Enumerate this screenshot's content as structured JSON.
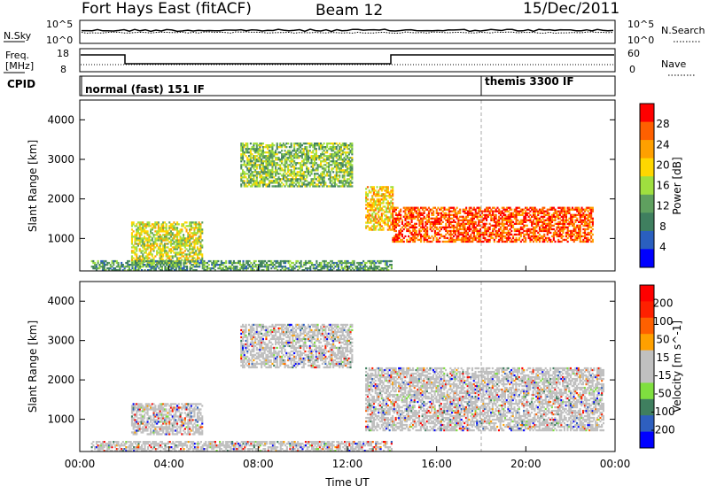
{
  "header": {
    "radar": "Fort Hays East (fitACF)",
    "beam": "Beam 12",
    "date": "15/Dec/2011"
  },
  "top_panel": {
    "left_label": "N.Sky",
    "right_label": "N.Search",
    "left_ticks": [
      "10^5",
      "10^0"
    ],
    "right_ticks": [
      "10^5",
      "10^0"
    ]
  },
  "freq_panel": {
    "left_label_1": "Freq.",
    "left_label_2": "[MHz]",
    "left_ticks": [
      "18",
      "8"
    ],
    "right_label": "Nave",
    "right_ticks": [
      "60",
      "0"
    ]
  },
  "cpid_panel": {
    "label": "CPID",
    "modes": [
      {
        "text": "normal (fast) 151 IF",
        "start_hour": 0
      },
      {
        "text": "themis 3300 IF",
        "start_hour": 18
      }
    ]
  },
  "colors": {
    "power_scale": [
      "#0000ff",
      "#2a5fbf",
      "#3f7f5f",
      "#5fa05f",
      "#9fdf3f",
      "#ffd700",
      "#ffa000",
      "#ff6000",
      "#ff0000"
    ],
    "velocity_scale": [
      "#0000ff",
      "#2e5fbf",
      "#3f7f5f",
      "#7fdf3f",
      "#c0c0c0",
      "#c0c0c0",
      "#ffa000",
      "#ff6000",
      "#ff2000",
      "#ff0000"
    ]
  },
  "chart_data": [
    {
      "type": "heatmap",
      "title": "",
      "xlabel": "",
      "ylabel": "Slant Range [km]",
      "xlim": [
        0,
        24
      ],
      "ylim": [
        180,
        4500
      ],
      "yticks": [
        "1000",
        "2000",
        "3000",
        "4000"
      ],
      "colorbar_label": "Power [dB]",
      "colorbar_ticks": [
        "28",
        "24",
        "20",
        "16",
        "12",
        "8",
        "4"
      ],
      "regions": [
        {
          "t0": 2.3,
          "t1": 5.5,
          "r_lo": 350,
          "r_hi": 1400,
          "level": 0.55
        },
        {
          "t0": 7.2,
          "t1": 12.2,
          "r_lo": 2300,
          "r_hi": 3400,
          "level": 0.45
        },
        {
          "t0": 12.8,
          "t1": 14.0,
          "r_lo": 1200,
          "r_hi": 2300,
          "level": 0.65
        },
        {
          "t0": 14.0,
          "t1": 23.0,
          "r_lo": 900,
          "r_hi": 1800,
          "level": 0.85
        },
        {
          "t0": 0.5,
          "t1": 14.0,
          "r_lo": 180,
          "r_hi": 450,
          "level": 0.35
        }
      ]
    },
    {
      "type": "heatmap",
      "title": "",
      "xlabel": "Time UT",
      "ylabel": "Slant Range [km]",
      "xlim": [
        0,
        24
      ],
      "ylim": [
        180,
        4500
      ],
      "xticks": [
        "00:00",
        "04:00",
        "08:00",
        "12:00",
        "16:00",
        "20:00",
        "00:00"
      ],
      "yticks": [
        "1000",
        "2000",
        "3000",
        "4000"
      ],
      "colorbar_label": "Velocity [m s^-1]",
      "colorbar_ticks": [
        "200",
        "100",
        "50",
        "15",
        "-15",
        "-50",
        "-100",
        "-200"
      ],
      "regions": [
        {
          "t0": 2.3,
          "t1": 5.5,
          "r_lo": 600,
          "r_hi": 1400,
          "level": 0.5
        },
        {
          "t0": 7.2,
          "t1": 12.2,
          "r_lo": 2300,
          "r_hi": 3400,
          "level": 0.5
        },
        {
          "t0": 12.8,
          "t1": 23.5,
          "r_lo": 700,
          "r_hi": 2300,
          "level": 0.5
        },
        {
          "t0": 0.5,
          "t1": 14.0,
          "r_lo": 180,
          "r_hi": 450,
          "level": 0.25
        }
      ]
    }
  ]
}
